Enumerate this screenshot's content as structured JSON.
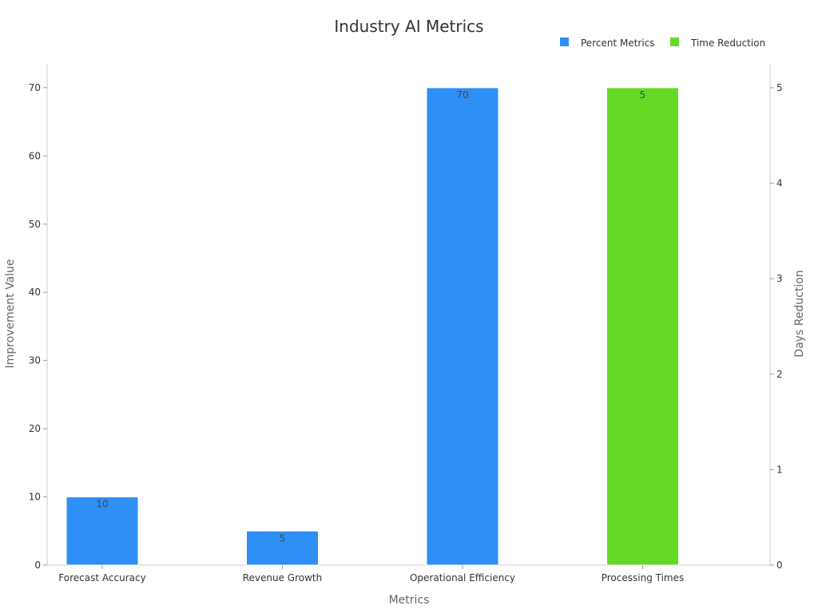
{
  "chart_data": {
    "type": "bar",
    "title": "Industry AI Metrics",
    "xlabel": "Metrics",
    "ylabel": "Improvement Value",
    "y2label": "Days Reduction",
    "categories": [
      "Forecast Accuracy",
      "Revenue Growth",
      "Operational Efficiency",
      "Processing Times"
    ],
    "series": [
      {
        "name": "Percent Metrics",
        "axis": "left",
        "color": "#2E8FF5",
        "values": [
          10,
          5,
          70,
          null
        ]
      },
      {
        "name": "Time Reduction",
        "axis": "right",
        "color": "#66D926",
        "values": [
          null,
          null,
          null,
          5
        ]
      }
    ],
    "ylim": [
      0,
      73.5
    ],
    "y_ticks": [
      0,
      10,
      20,
      30,
      40,
      50,
      60,
      70
    ],
    "y2lim": [
      0,
      5.25
    ],
    "y2_ticks": [
      0,
      1,
      2,
      3,
      4,
      5
    ],
    "legend_position": "top-right",
    "grid": false
  }
}
